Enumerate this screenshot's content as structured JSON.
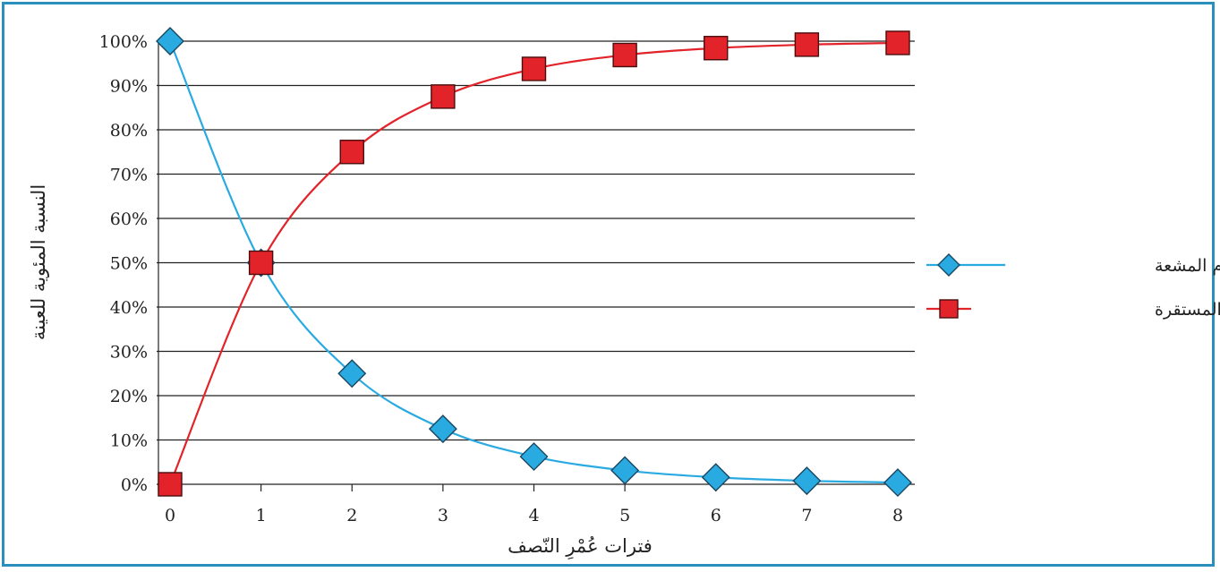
{
  "chart_data": {
    "type": "line",
    "title": "",
    "xlabel": "فترات عُمْرِ النّصف",
    "ylabel": "النسبة المئوية للعينة",
    "x": [
      0,
      1,
      2,
      3,
      4,
      5,
      6,
      7,
      8
    ],
    "xticks": [
      "0",
      "1",
      "2",
      "3",
      "4",
      "5",
      "6",
      "7",
      "8"
    ],
    "ylim": [
      0,
      100
    ],
    "yticks": [
      "0%",
      "10%",
      "20%",
      "30%",
      "40%",
      "50%",
      "60%",
      "70%",
      "80%",
      "90%",
      "100%"
    ],
    "grid": "horizontal",
    "legend_position": "right",
    "series": [
      {
        "name": "النظيرة الأم المشعة",
        "marker": "diamond",
        "color": "#29aae1",
        "values": [
          100,
          50,
          25,
          12.5,
          6.25,
          3.125,
          1.5625,
          0.78,
          0.39
        ]
      },
      {
        "name": "النظيرة الوليدة المستقرة",
        "marker": "square",
        "color": "#e2232a",
        "values": [
          0,
          50,
          75,
          87.5,
          93.75,
          96.875,
          98.4375,
          99.22,
          99.61
        ]
      }
    ]
  }
}
